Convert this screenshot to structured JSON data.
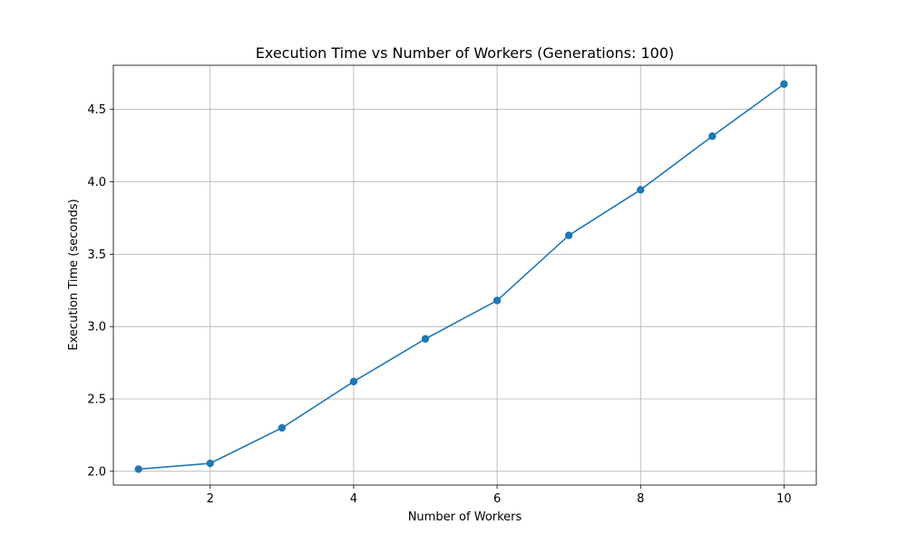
{
  "chart_data": {
    "type": "line",
    "title": "Execution Time vs Number of Workers (Generations: 100)",
    "xlabel": "Number of Workers",
    "ylabel": "Execution Time (seconds)",
    "xlim": [
      0.65,
      10.45
    ],
    "ylim": [
      1.905,
      4.805
    ],
    "x_ticks": [
      2,
      4,
      6,
      8,
      10
    ],
    "x_tick_labels": [
      "2",
      "4",
      "6",
      "8",
      "10"
    ],
    "y_ticks": [
      2.0,
      2.5,
      3.0,
      3.5,
      4.0,
      4.5
    ],
    "y_tick_labels": [
      "2.0",
      "2.5",
      "3.0",
      "3.5",
      "4.0",
      "4.5"
    ],
    "grid": true,
    "series": [
      {
        "color": "#1f77b4",
        "marker": "circle",
        "x": [
          1,
          2,
          3,
          4,
          5,
          6,
          7,
          8,
          9,
          10
        ],
        "y": [
          2.015,
          2.055,
          2.3,
          2.62,
          2.915,
          3.18,
          3.63,
          3.945,
          4.315,
          4.675
        ]
      }
    ]
  }
}
